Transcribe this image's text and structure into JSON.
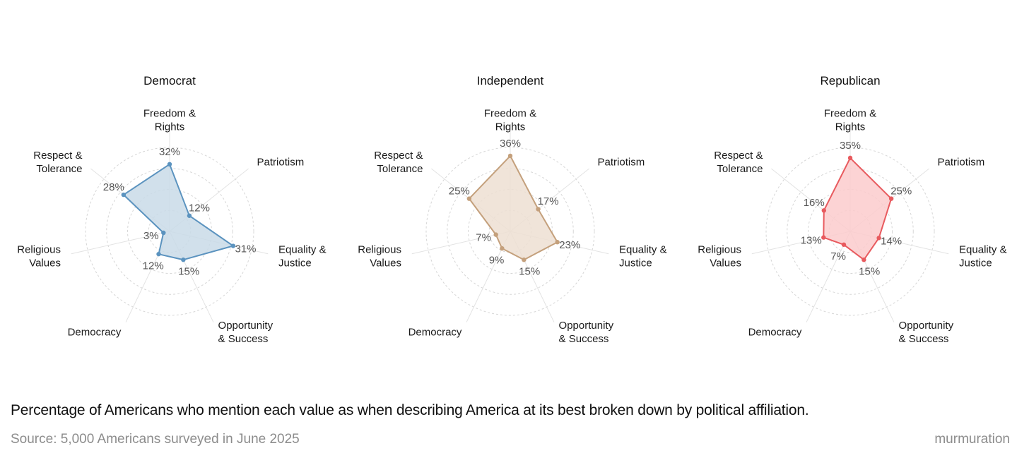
{
  "chart_data": [
    {
      "type": "radar",
      "title": "Democrat",
      "color": "#5b93bf",
      "fill": "#c9dae7",
      "rmax": 40,
      "grid_levels": [
        10,
        20,
        30,
        40
      ],
      "categories": [
        [
          "Freedom &",
          "Rights"
        ],
        [
          "Patriotism"
        ],
        [
          "Equality &",
          "Justice"
        ],
        [
          "Opportunity",
          "& Success"
        ],
        [
          "Democracy"
        ],
        [
          "Religious",
          "Values"
        ],
        [
          "Respect &",
          "Tolerance"
        ]
      ],
      "values": [
        32,
        12,
        31,
        15,
        12,
        3,
        28
      ],
      "value_labels": [
        "32%",
        "12%",
        "31%",
        "15%",
        "12%",
        "3%",
        "28%"
      ]
    },
    {
      "type": "radar",
      "title": "Independent",
      "color": "#c4a07c",
      "fill": "#eddfd2",
      "rmax": 40,
      "grid_levels": [
        10,
        20,
        30,
        40
      ],
      "categories": [
        [
          "Freedom &",
          "Rights"
        ],
        [
          "Patriotism"
        ],
        [
          "Equality &",
          "Justice"
        ],
        [
          "Opportunity",
          "& Success"
        ],
        [
          "Democracy"
        ],
        [
          "Religious",
          "Values"
        ],
        [
          "Respect &",
          "Tolerance"
        ]
      ],
      "values": [
        36,
        17,
        23,
        15,
        9,
        7,
        25
      ],
      "value_labels": [
        "36%",
        "17%",
        "23%",
        "15%",
        "9%",
        "7%",
        "25%"
      ]
    },
    {
      "type": "radar",
      "title": "Republican",
      "color": "#e85a5e",
      "fill": "#fbcbcc",
      "rmax": 40,
      "grid_levels": [
        10,
        20,
        30,
        40
      ],
      "categories": [
        [
          "Freedom &",
          "Rights"
        ],
        [
          "Patriotism"
        ],
        [
          "Equality &",
          "Justice"
        ],
        [
          "Opportunity",
          "& Success"
        ],
        [
          "Democracy"
        ],
        [
          "Religious",
          "Values"
        ],
        [
          "Respect &",
          "Tolerance"
        ]
      ],
      "values": [
        35,
        25,
        14,
        15,
        7,
        13,
        16
      ],
      "value_labels": [
        "35%",
        "25%",
        "14%",
        "15%",
        "7%",
        "13%",
        "16%"
      ]
    }
  ],
  "caption": "Percentage of Americans who mention each value as when describing America at its best broken down by political affiliation.",
  "source": "Source: 5,000 Americans surveyed in June 2025",
  "brand": "murmuration"
}
